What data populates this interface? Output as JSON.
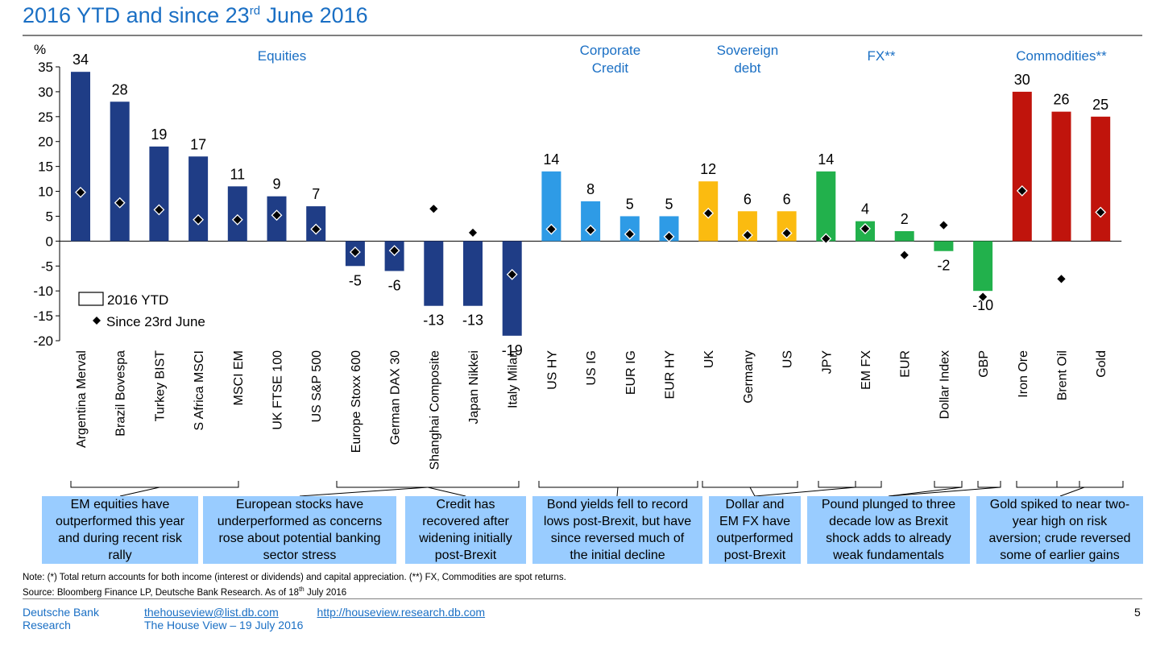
{
  "title": {
    "pre": "2016 YTD and since 23",
    "sup": "rd",
    "post": " June 2016"
  },
  "chart_data": {
    "type": "bar",
    "ylabel": "%",
    "ylim": [
      -20,
      35
    ],
    "yticks": [
      35,
      30,
      25,
      20,
      15,
      10,
      5,
      0,
      -5,
      -10,
      -15,
      -20
    ],
    "categories": [
      "Argentina Merval",
      "Brazil Bovespa",
      "Turkey BIST",
      "S Africa MSCI",
      "MSCI EM",
      "UK FTSE 100",
      "US S&P 500",
      "Europe Stoxx 600",
      "German DAX 30",
      "Shanghai Composite",
      "Japan Nikkei",
      "Italy Milan",
      "US HY",
      "US IG",
      "EUR IG",
      "EUR HY",
      "UK",
      "Germany",
      "US",
      "JPY",
      "EM FX",
      "EUR",
      "Dollar Index",
      "GBP",
      "Iron Ore",
      "Brent Oil",
      "Gold"
    ],
    "series": [
      {
        "name": "2016 YTD",
        "type": "bar",
        "values": [
          34,
          28,
          19,
          17,
          11,
          9,
          7,
          -5,
          -6,
          -13,
          -13,
          -19,
          14,
          8,
          5,
          5,
          12,
          6,
          6,
          14,
          4,
          2,
          -2,
          -10,
          30,
          26,
          25
        ],
        "labels": [
          "34",
          "28",
          "19",
          "17",
          "11",
          "9",
          "7",
          "-5",
          "-6",
          "-13",
          "-13",
          "-19",
          "14",
          "8",
          "5",
          "5",
          "12",
          "6",
          "6",
          "14",
          "4",
          "2",
          "-2",
          "-10",
          "30",
          "26",
          "25"
        ]
      },
      {
        "name": "Since 23rd June",
        "type": "marker",
        "values": [
          9.8,
          7.7,
          6.3,
          4.3,
          4.3,
          5.2,
          2.4,
          -2.2,
          -1.9,
          6.5,
          1.7,
          -6.7,
          2.4,
          2.2,
          1.4,
          0.9,
          5.6,
          1.2,
          1.6,
          0.5,
          2.5,
          -2.8,
          3.2,
          -11.2,
          10.1,
          -7.6,
          5.8
        ]
      }
    ],
    "groups": [
      {
        "name": "Equities",
        "lines": [
          "Equities"
        ],
        "color": "#1f3d86"
      },
      {
        "name": "Corporate Credit",
        "lines": [
          "Corporate",
          "Credit"
        ],
        "color": "#2e9be6"
      },
      {
        "name": "Sovereign debt",
        "lines": [
          "Sovereign",
          "debt"
        ],
        "color": "#fbbb10"
      },
      {
        "name": "FX**",
        "lines": [
          "FX**"
        ],
        "color": "#22b14c"
      },
      {
        "name": "Commodities**",
        "lines": [
          "Commodities**"
        ],
        "color": "#c0140c"
      }
    ],
    "group_of_category": [
      0,
      0,
      0,
      0,
      0,
      0,
      0,
      0,
      0,
      0,
      0,
      0,
      1,
      1,
      1,
      1,
      2,
      2,
      2,
      3,
      3,
      3,
      3,
      3,
      4,
      4,
      4
    ],
    "legend": {
      "position": "bottom-left",
      "bar_label": "2016 YTD",
      "marker_label": "Since 23rd June"
    }
  },
  "commentary": [
    {
      "lines": [
        "EM equities have",
        "outperformed  this year",
        "and during recent risk",
        "rally"
      ]
    },
    {
      "lines": [
        "European stocks have",
        "underperformed as concerns",
        "rose about potential banking",
        "sector stress"
      ]
    },
    {
      "lines": [
        "Credit has",
        "recovered  after",
        "widening initially",
        "post-Brexit"
      ]
    },
    {
      "lines": [
        "Bond yields fell to record",
        "lows post-Brexit, but have",
        "since reversed much of",
        "the initial decline"
      ]
    },
    {
      "lines": [
        "Dollar and",
        "EM FX have",
        "outperformed",
        "post-Brexit"
      ]
    },
    {
      "lines": [
        "Pound plunged to three",
        "decade low as Brexit",
        "shock adds to already",
        "weak fundamentals"
      ]
    },
    {
      "lines": [
        "Gold spiked to near two-",
        "year high on risk",
        "aversion; crude  reversed",
        "some of earlier gains"
      ]
    }
  ],
  "note": "Note: (*) Total return accounts for both income (interest or dividends) and capital appreciation. (**) FX, Commodities are spot returns.",
  "source": {
    "pre": "Source: Bloomberg Finance LP, Deutsche Bank Research. As of  18",
    "sup": "th",
    "post": " July 2016"
  },
  "footer": {
    "org_line1": "Deutsche Bank",
    "org_line2": "Research",
    "email": "thehouseview@list.db.com",
    "url": "http://houseview.research.db.com",
    "publication": "The House View – 19 July 2016",
    "page": "5"
  }
}
